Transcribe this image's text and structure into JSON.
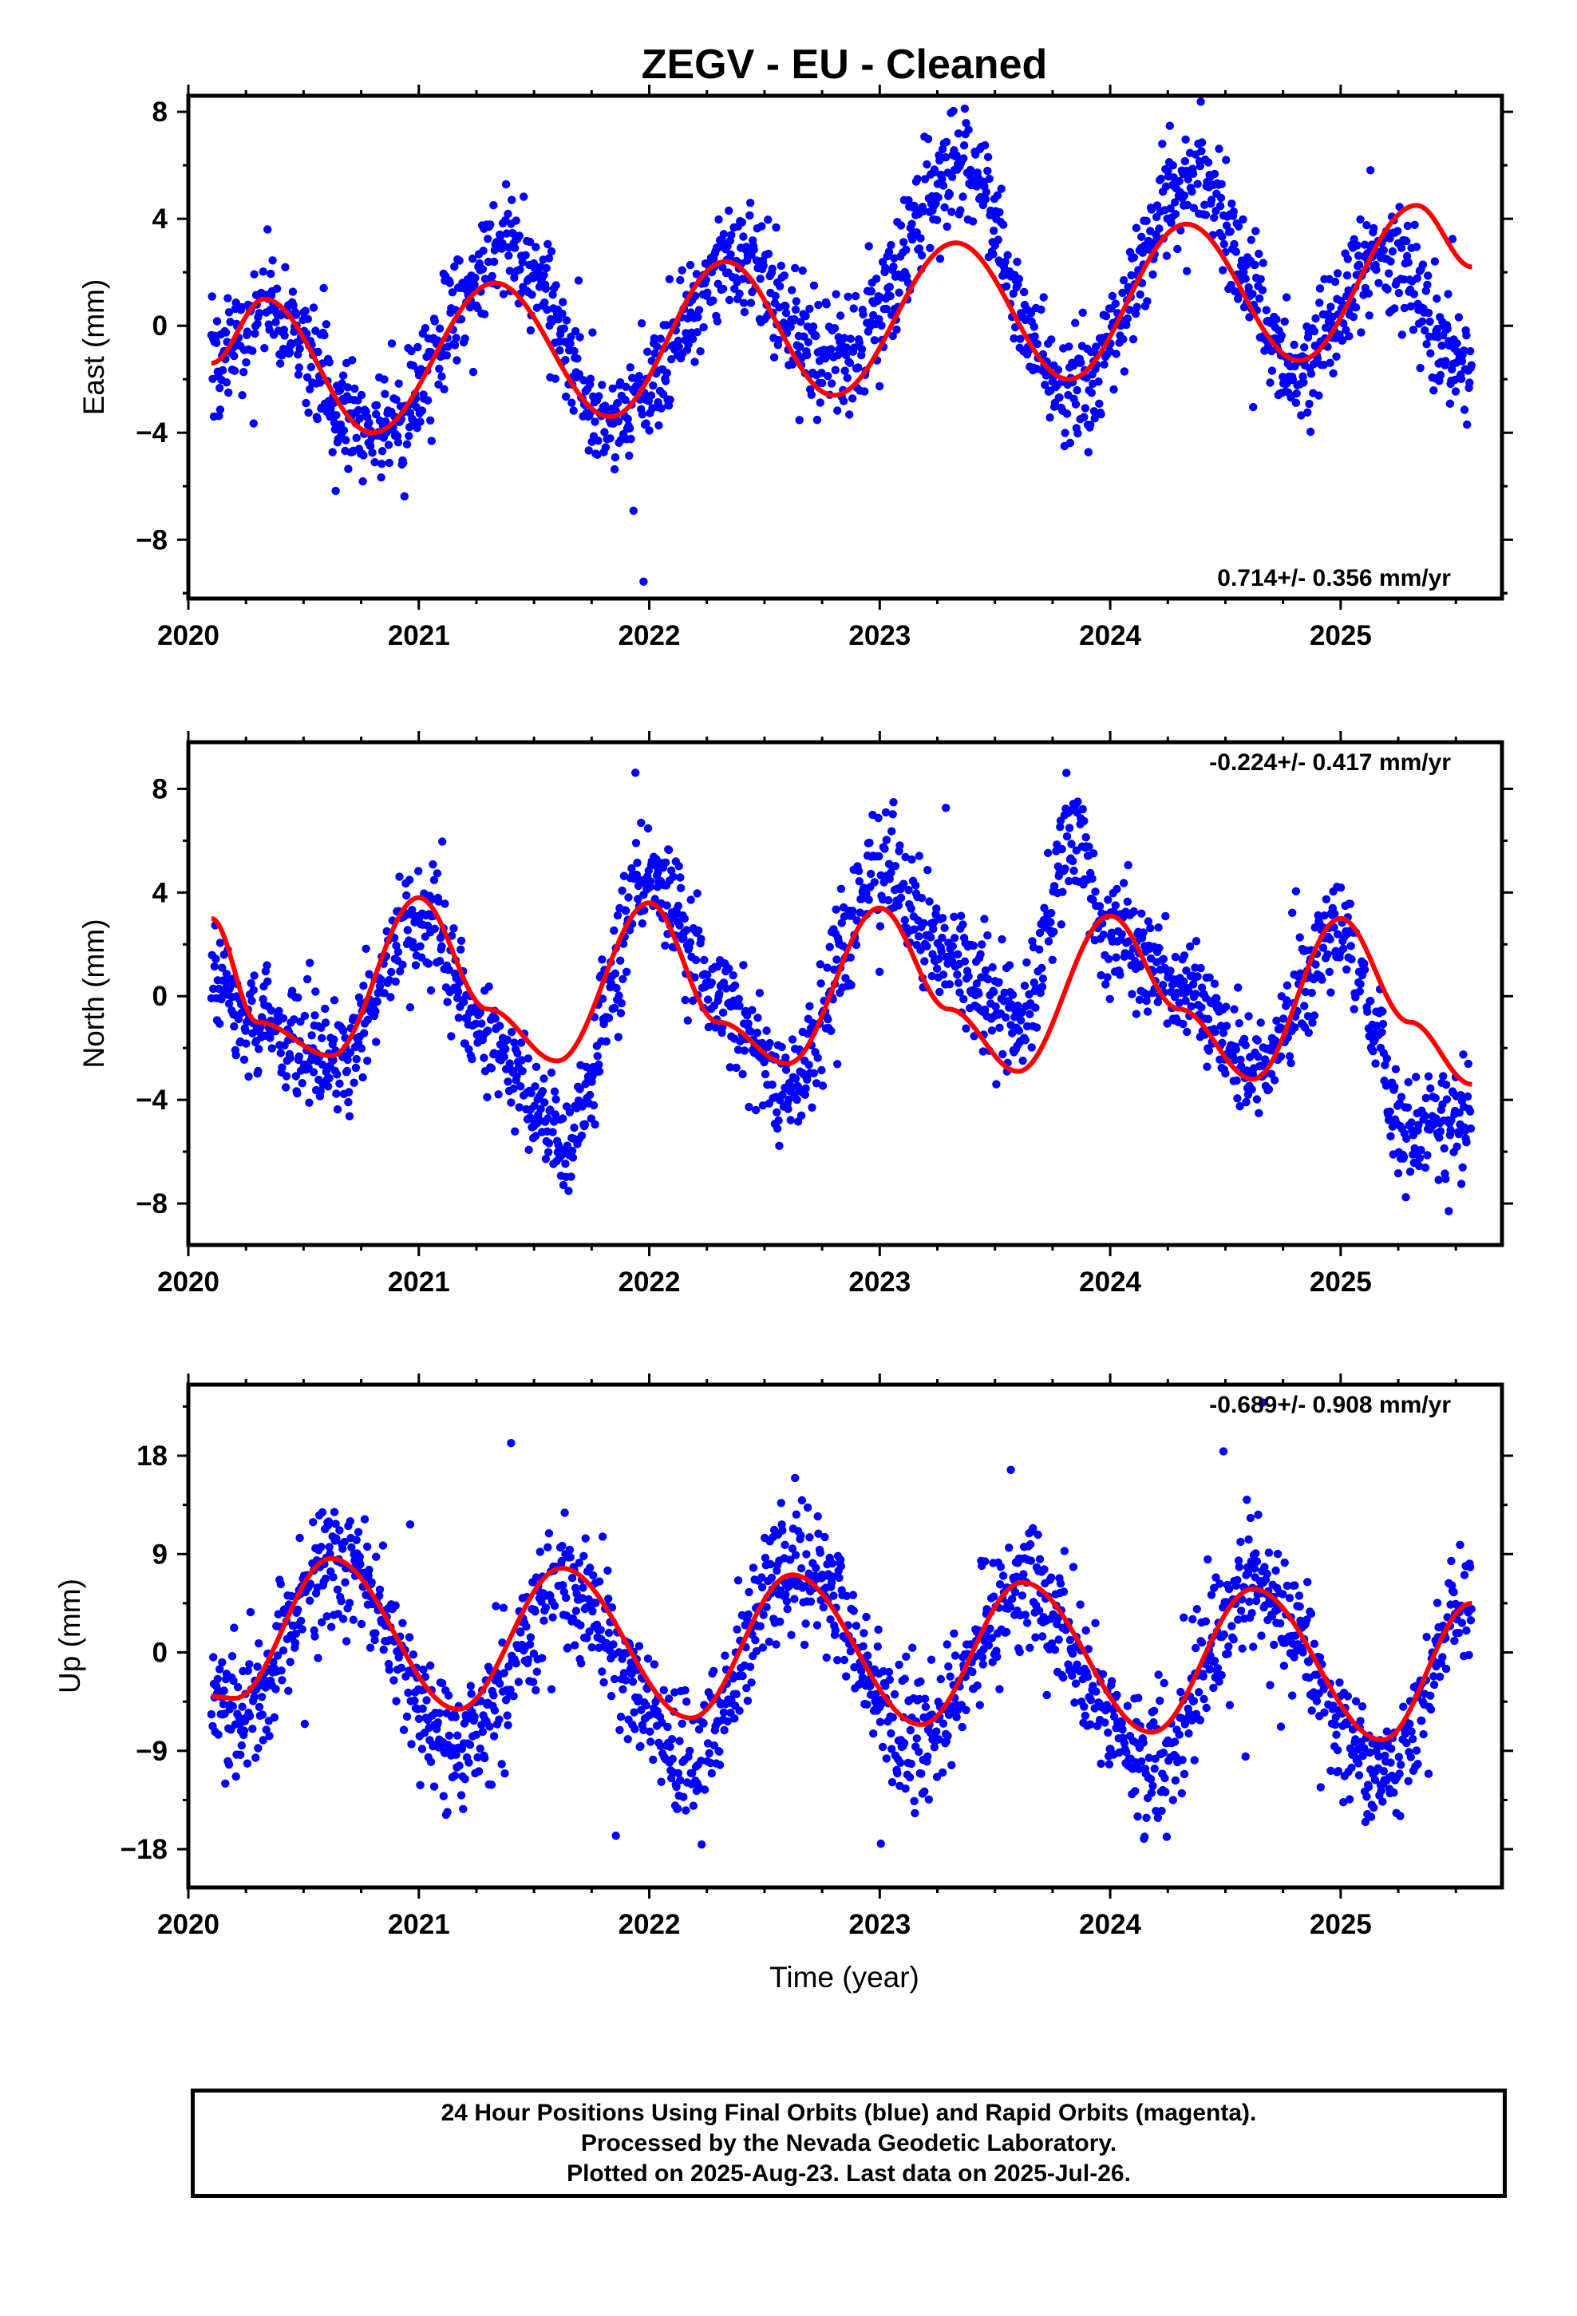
{
  "title": "ZEGV  - EU - Cleaned",
  "colors": {
    "final_orbits": "#0000ff",
    "rapid_orbits": "#ff00ff",
    "fit": "#ff0000"
  },
  "chart_data": [
    {
      "type": "scatter",
      "component": "east",
      "ylabel": "East (mm)",
      "xlabel": "",
      "xlim": [
        2020.0,
        2025.7
      ],
      "ylim": [
        -10.2,
        8.6
      ],
      "xticks": [
        2020,
        2021,
        2022,
        2023,
        2024,
        2025
      ],
      "xtick_labels": [
        "2020",
        "2021",
        "2022",
        "2023",
        "2024",
        "2025"
      ],
      "yticks": [
        -8,
        -4,
        0,
        4,
        8
      ],
      "ytick_labels": [
        "−8",
        "−4",
        "0",
        "4",
        "8"
      ],
      "rate_label": "0.714+/- 0.356 mm/yr",
      "rate_position": "bottom-right",
      "data_start": 2020.1,
      "data_end": 2025.57,
      "seasonal_fit": {
        "x": [
          2020.1,
          2020.33,
          2020.8,
          2021.33,
          2021.83,
          2022.33,
          2022.8,
          2023.33,
          2023.82,
          2024.33,
          2024.82,
          2025.33,
          2025.57
        ],
        "y": [
          -1.4,
          1.0,
          -4.0,
          1.6,
          -3.4,
          2.4,
          -2.6,
          3.1,
          -2.0,
          3.8,
          -1.3,
          4.5,
          2.2
        ]
      },
      "observed_envelope": {
        "x": [
          2020.1,
          2020.33,
          2020.8,
          2021.4,
          2021.83,
          2022.4,
          2022.8,
          2023.35,
          2023.82,
          2024.35,
          2024.82,
          2025.2,
          2025.57
        ],
        "y": [
          -1.5,
          0.5,
          -4.2,
          3.0,
          -3.5,
          2.5,
          -1.5,
          5.8,
          -2.5,
          5.5,
          -1.5,
          2.5,
          -1.5
        ]
      }
    },
    {
      "type": "scatter",
      "component": "north",
      "ylabel": "North (mm)",
      "xlabel": "",
      "xlim": [
        2020.0,
        2025.7
      ],
      "ylim": [
        -9.6,
        9.8
      ],
      "xticks": [
        2020,
        2021,
        2022,
        2023,
        2024,
        2025
      ],
      "xtick_labels": [
        "2020",
        "2021",
        "2022",
        "2023",
        "2024",
        "2025"
      ],
      "yticks": [
        -8,
        -4,
        0,
        4,
        8
      ],
      "ytick_labels": [
        "−8",
        "−4",
        "0",
        "4",
        "8"
      ],
      "rate_label": "-0.224+/- 0.417 mm/yr",
      "rate_position": "top-right",
      "data_start": 2020.1,
      "data_end": 2025.57,
      "seasonal_fit": {
        "x": [
          2020.1,
          2020.3,
          2020.62,
          2021.0,
          2021.3,
          2021.6,
          2022.0,
          2022.3,
          2022.6,
          2023.0,
          2023.3,
          2023.6,
          2024.0,
          2024.3,
          2024.62,
          2025.0,
          2025.3,
          2025.57
        ],
        "y": [
          3.0,
          -1.0,
          -2.3,
          3.8,
          -0.5,
          -2.5,
          3.6,
          -1.0,
          -2.6,
          3.4,
          -0.5,
          -2.9,
          3.1,
          -0.5,
          -3.2,
          3.0,
          -1.0,
          -3.4
        ]
      },
      "observed_envelope": {
        "x": [
          2020.1,
          2020.3,
          2020.62,
          2021.0,
          2021.3,
          2021.62,
          2022.0,
          2022.3,
          2022.6,
          2023.0,
          2023.3,
          2023.6,
          2023.85,
          2024.0,
          2024.3,
          2024.62,
          2025.0,
          2025.3,
          2025.57
        ],
        "y": [
          0.5,
          -1.0,
          -2.5,
          3.0,
          -1.5,
          -5.5,
          4.5,
          0.0,
          -3.5,
          5.0,
          1.5,
          -1.0,
          6.5,
          2.0,
          0.5,
          -3.0,
          2.5,
          -5.5,
          -4.5
        ]
      }
    },
    {
      "type": "scatter",
      "component": "up",
      "ylabel": "Up (mm)",
      "xlabel": "Time (year)",
      "xlim": [
        2020.0,
        2025.7
      ],
      "ylim": [
        -21.5,
        24.5
      ],
      "xticks": [
        2020,
        2021,
        2022,
        2023,
        2024,
        2025
      ],
      "xtick_labels": [
        "2020",
        "2021",
        "2022",
        "2023",
        "2024",
        "2025"
      ],
      "yticks": [
        -18,
        -9,
        0,
        9,
        18
      ],
      "ytick_labels": [
        "−18",
        "−9",
        "0",
        "9",
        "18"
      ],
      "rate_label": "-0.689+/- 0.908 mm/yr",
      "rate_position": "top-right",
      "data_start": 2020.1,
      "data_end": 2025.57,
      "seasonal_fit": {
        "x": [
          2020.1,
          2020.2,
          2020.62,
          2021.17,
          2021.62,
          2022.18,
          2022.62,
          2023.18,
          2023.62,
          2024.18,
          2024.62,
          2025.18,
          2025.57
        ],
        "y": [
          -4.0,
          -4.2,
          8.6,
          -5.2,
          7.7,
          -6.0,
          7.1,
          -6.6,
          6.4,
          -7.3,
          5.8,
          -8.0,
          4.5
        ]
      },
      "observed_envelope": {
        "x": [
          2020.1,
          2020.2,
          2020.62,
          2021.17,
          2021.62,
          2022.18,
          2022.62,
          2023.18,
          2023.62,
          2024.18,
          2024.62,
          2025.18,
          2025.57
        ],
        "y": [
          -4.0,
          -6.0,
          9.0,
          -8.0,
          6.0,
          -10.0,
          8.0,
          -8.0,
          6.0,
          -10.0,
          6.0,
          -11.0,
          5.0
        ]
      }
    }
  ],
  "footer": {
    "line1": "24 Hour Positions Using Final Orbits (blue) and Rapid Orbits (magenta).",
    "line2": "Processed by the Nevada Geodetic Laboratory.",
    "line3": "Plotted on 2025-Aug-23. Last data on 2025-Jul-26."
  }
}
